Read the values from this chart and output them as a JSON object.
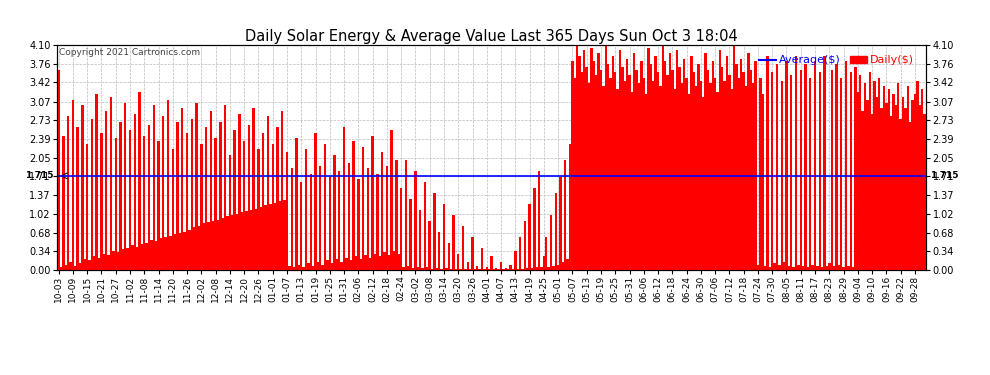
{
  "title": "Daily Solar Energy & Average Value Last 365 Days Sun Oct 3 18:04",
  "copyright": "Copyright 2021 Cartronics.com",
  "average_value": 1.715,
  "average_label": "1.715",
  "ylim": [
    0.0,
    4.1
  ],
  "yticks": [
    0.0,
    0.34,
    0.68,
    1.02,
    1.37,
    1.71,
    2.05,
    2.39,
    2.73,
    3.07,
    3.42,
    3.76,
    4.1
  ],
  "bar_color": "#ff0000",
  "avg_line_color": "#0000ff",
  "background_color": "#ffffff",
  "grid_color": "#bbbbbb",
  "title_color": "#000000",
  "legend_average_color": "#0000ff",
  "legend_daily_color": "#ff0000",
  "x_tick_labels": [
    "10-03",
    "10-09",
    "10-15",
    "10-21",
    "10-27",
    "11-02",
    "11-08",
    "11-14",
    "11-20",
    "11-26",
    "12-02",
    "12-08",
    "12-14",
    "12-20",
    "12-26",
    "01-01",
    "01-07",
    "01-13",
    "01-19",
    "01-25",
    "01-31",
    "02-06",
    "02-12",
    "02-18",
    "02-24",
    "03-02",
    "03-08",
    "03-14",
    "03-20",
    "03-26",
    "04-01",
    "04-07",
    "04-13",
    "04-19",
    "04-25",
    "05-01",
    "05-07",
    "05-13",
    "05-19",
    "05-25",
    "05-31",
    "06-06",
    "06-12",
    "06-18",
    "06-24",
    "06-30",
    "07-06",
    "07-12",
    "07-18",
    "07-24",
    "07-30",
    "08-05",
    "08-11",
    "08-17",
    "08-23",
    "08-29",
    "09-04",
    "09-10",
    "09-16",
    "09-22",
    "09-28"
  ],
  "daily_values": [
    3.65,
    0.05,
    2.45,
    0.1,
    2.8,
    0.15,
    3.1,
    0.08,
    2.6,
    0.12,
    3.0,
    0.2,
    2.3,
    0.18,
    2.75,
    0.25,
    3.2,
    0.22,
    2.5,
    0.3,
    2.9,
    0.28,
    3.15,
    0.35,
    2.4,
    0.32,
    2.7,
    0.38,
    3.05,
    0.4,
    2.55,
    0.45,
    2.85,
    0.42,
    3.25,
    0.48,
    2.45,
    0.5,
    2.65,
    0.55,
    3.0,
    0.52,
    2.35,
    0.58,
    2.8,
    0.6,
    3.1,
    0.62,
    2.2,
    0.65,
    2.7,
    0.68,
    2.95,
    0.7,
    2.5,
    0.72,
    2.75,
    0.78,
    3.05,
    0.8,
    2.3,
    0.85,
    2.6,
    0.88,
    2.9,
    0.9,
    2.4,
    0.92,
    2.7,
    0.95,
    3.0,
    0.98,
    2.1,
    1.0,
    2.55,
    1.02,
    2.85,
    1.05,
    2.35,
    1.08,
    2.65,
    1.1,
    2.95,
    1.12,
    2.2,
    1.15,
    2.5,
    1.18,
    2.8,
    1.2,
    2.3,
    1.22,
    2.6,
    1.25,
    2.9,
    1.28,
    2.15,
    0.08,
    1.85,
    0.05,
    2.4,
    0.1,
    1.6,
    0.06,
    2.2,
    0.12,
    1.75,
    0.08,
    2.5,
    0.15,
    1.9,
    0.1,
    2.3,
    0.18,
    1.7,
    0.12,
    2.1,
    0.2,
    1.8,
    0.15,
    2.6,
    0.22,
    1.95,
    0.18,
    2.35,
    0.25,
    1.65,
    0.2,
    2.25,
    0.28,
    1.85,
    0.22,
    2.45,
    0.3,
    1.75,
    0.25,
    2.15,
    0.32,
    1.9,
    0.28,
    2.55,
    0.35,
    2.0,
    0.3,
    1.5,
    0.05,
    2.0,
    0.08,
    1.3,
    0.04,
    1.8,
    0.06,
    1.1,
    0.03,
    1.6,
    0.05,
    0.9,
    0.02,
    1.4,
    0.04,
    0.7,
    0.01,
    1.2,
    0.03,
    0.5,
    0.01,
    1.0,
    0.02,
    0.3,
    0.01,
    0.8,
    0.02,
    0.15,
    0.01,
    0.6,
    0.01,
    0.08,
    0.01,
    0.4,
    0.01,
    0.05,
    0.01,
    0.25,
    0.01,
    0.04,
    0.01,
    0.15,
    0.01,
    0.03,
    0.01,
    0.1,
    0.01,
    0.35,
    0.01,
    0.6,
    0.02,
    0.9,
    0.03,
    1.2,
    0.04,
    1.5,
    0.05,
    1.8,
    0.06,
    0.25,
    0.6,
    0.05,
    1.0,
    0.08,
    1.4,
    0.1,
    1.7,
    0.15,
    2.0,
    0.2,
    2.3,
    3.8,
    3.5,
    4.1,
    3.9,
    3.6,
    4.0,
    3.7,
    3.4,
    4.05,
    3.8,
    3.55,
    3.95,
    3.65,
    3.35,
    4.1,
    3.75,
    3.5,
    3.9,
    3.6,
    3.3,
    4.0,
    3.7,
    3.45,
    3.85,
    3.55,
    3.25,
    3.95,
    3.65,
    3.4,
    3.8,
    3.5,
    3.2,
    4.05,
    3.75,
    3.45,
    3.9,
    3.6,
    3.35,
    4.1,
    3.8,
    3.55,
    3.95,
    3.65,
    3.3,
    4.0,
    3.7,
    3.4,
    3.85,
    3.5,
    3.2,
    3.9,
    3.6,
    3.35,
    3.75,
    3.45,
    3.15,
    3.95,
    3.65,
    3.4,
    3.8,
    3.5,
    3.25,
    4.0,
    3.7,
    3.45,
    3.9,
    3.55,
    3.3,
    4.1,
    3.75,
    3.5,
    3.85,
    3.6,
    3.35,
    3.95,
    3.65,
    3.4,
    3.8,
    0.1,
    3.5,
    3.2,
    0.08,
    3.9,
    0.05,
    3.6,
    0.12,
    3.75,
    0.1,
    3.45,
    0.15,
    3.8,
    0.08,
    3.55,
    0.05,
    3.9,
    0.1,
    3.65,
    0.08,
    3.75,
    0.06,
    3.5,
    0.1,
    3.8,
    0.08,
    3.6,
    0.05,
    3.9,
    0.08,
    0.12,
    3.65,
    0.08,
    3.75,
    0.1,
    3.5,
    0.06,
    3.8,
    0.08,
    3.6,
    0.05,
    3.7,
    3.25,
    3.55,
    2.9,
    3.4,
    3.1,
    3.6,
    2.85,
    3.45,
    3.15,
    3.5,
    2.95,
    3.35,
    3.05,
    3.3,
    2.8,
    3.2,
    3.0,
    3.4,
    2.75,
    3.15,
    2.95,
    3.35,
    2.7,
    3.1,
    3.2,
    3.45,
    3.0,
    3.3,
    2.85,
    3.4,
    3.1,
    3.55,
    2.9,
    3.25,
    3.05,
    3.5
  ]
}
